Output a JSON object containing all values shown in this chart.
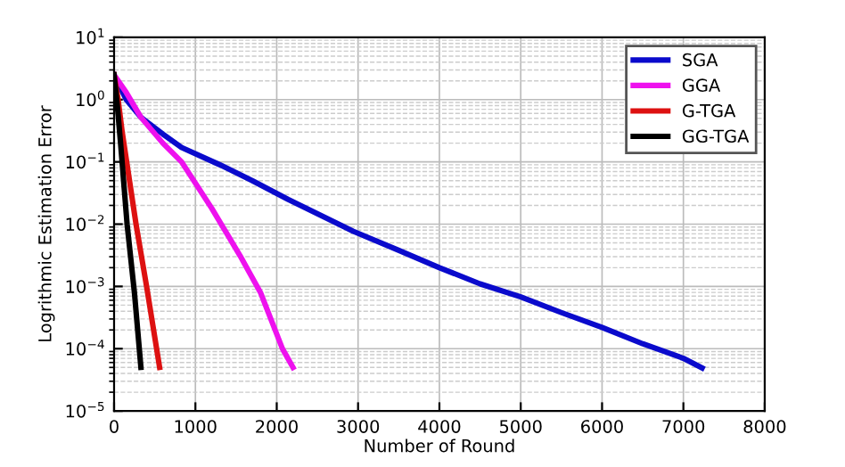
{
  "chart_data": {
    "type": "line",
    "xlabel": "Number of Round",
    "ylabel": "Logrithmic Estimation Error",
    "log": "y",
    "grid": true,
    "legend": "top right",
    "line_style": "solid",
    "xlim": [
      0,
      8000
    ],
    "xticks": [
      0,
      1000,
      2000,
      3000,
      4000,
      5000,
      6000,
      7000,
      8000
    ],
    "ylim": [
      1e-05,
      10
    ],
    "yticks": [
      {
        "value": 1e-05,
        "label": "10$^{−5}$"
      },
      {
        "value": 0.0001,
        "label": "10$^{−4}$"
      },
      {
        "value": 0.001,
        "label": "10$^{−3}$"
      },
      {
        "value": 0.01,
        "label": "10$^{−2}$"
      },
      {
        "value": 0.1,
        "label": "10$^{−1}$"
      },
      {
        "value": 1,
        "label": "10$^{0}$"
      },
      {
        "value": 10,
        "label": "10$^{1}$"
      }
    ],
    "series": [
      {
        "name": "SGA",
        "color": "#0a0acc",
        "x": [
          0,
          150,
          330,
          600,
          830,
          1300,
          1700,
          2140,
          2940,
          3500,
          4000,
          4500,
          5000,
          5500,
          6000,
          6500,
          7000,
          7230
        ],
        "values": [
          2.5,
          1.0,
          0.52,
          0.28,
          0.17,
          0.09,
          0.05,
          0.025,
          0.0077,
          0.0038,
          0.002,
          0.0011,
          0.00068,
          0.00038,
          0.00022,
          0.00012,
          7e-05,
          4.9e-05
        ]
      },
      {
        "name": "GGA",
        "color": "#ee11ee",
        "x": [
          0,
          150,
          330,
          600,
          830,
          1200,
          1550,
          1800,
          2070,
          2200
        ],
        "values": [
          2.5,
          1.3,
          0.52,
          0.2,
          0.1,
          0.018,
          0.0031,
          0.0008,
          0.0001,
          5e-05
        ]
      },
      {
        "name": "G-TGA",
        "color": "#dd1111",
        "x": [
          0,
          50,
          100,
          270,
          400,
          560
        ],
        "values": [
          2.5,
          1.0,
          0.3,
          0.01,
          0.001,
          5e-05
        ]
      },
      {
        "name": "GG-TGA",
        "color": "#000000",
        "x": [
          0,
          40,
          80,
          160,
          250,
          330
        ],
        "values": [
          2.5,
          0.8,
          0.2,
          0.01,
          0.0008,
          5e-05
        ]
      }
    ]
  }
}
